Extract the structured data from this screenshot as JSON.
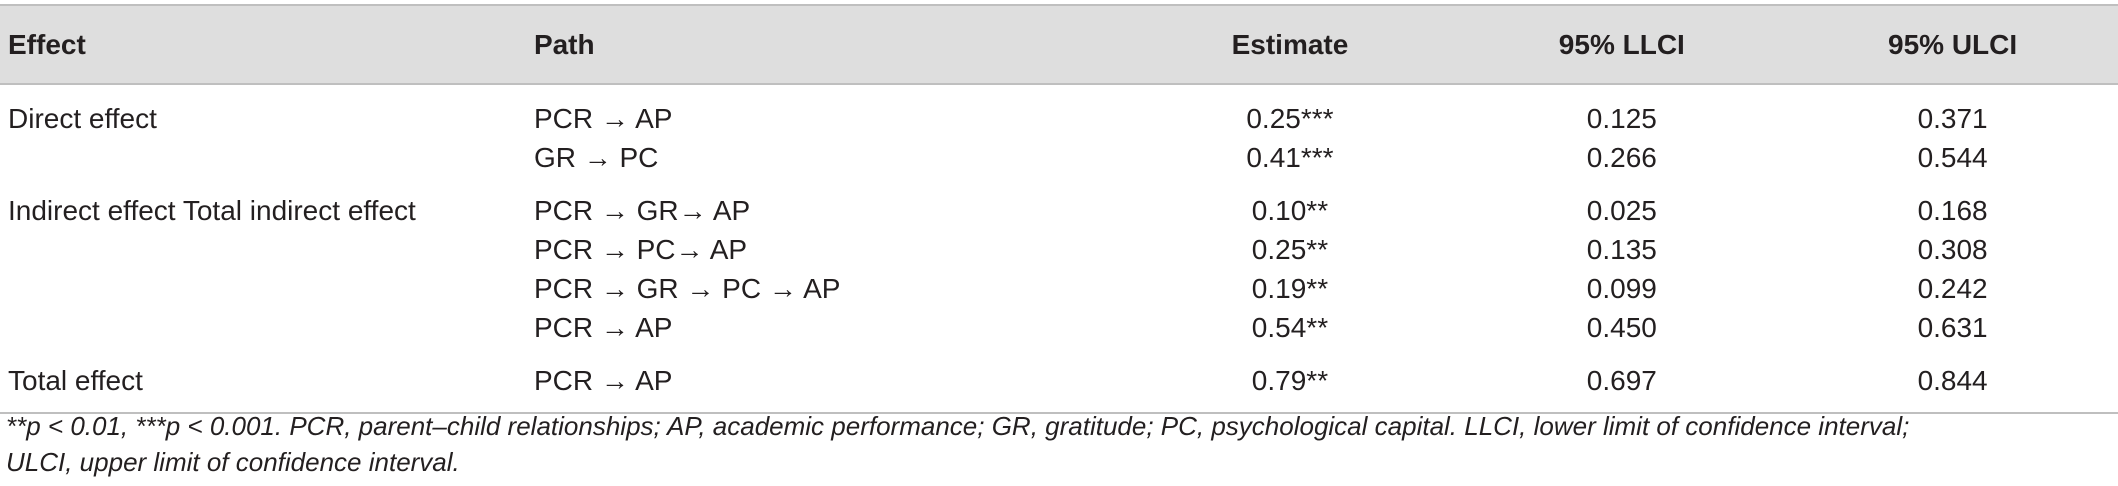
{
  "headers": {
    "effect": "Effect",
    "path": "Path",
    "estimate": "Estimate",
    "llci": "95% LLCI",
    "ulci": "95% ULCI"
  },
  "rows": [
    {
      "effect": "Direct effect",
      "path": "PCR → AP",
      "estimate": "0.25***",
      "llci": "0.125",
      "ulci": "0.371"
    },
    {
      "effect": "",
      "path": "GR → PC",
      "estimate": "0.41***",
      "llci": "0.266",
      "ulci": "0.544"
    },
    {
      "effect": "Indirect effect Total indirect effect",
      "path": "PCR → GR→ AP",
      "estimate": "0.10**",
      "llci": "0.025",
      "ulci": "0.168"
    },
    {
      "effect": "",
      "path": "PCR → PC→ AP",
      "estimate": "0.25**",
      "llci": "0.135",
      "ulci": "0.308"
    },
    {
      "effect": "",
      "path": "PCR → GR → PC → AP",
      "estimate": "0.19**",
      "llci": "0.099",
      "ulci": "0.242"
    },
    {
      "effect": "",
      "path": "PCR → AP",
      "estimate": "0.54**",
      "llci": "0.450",
      "ulci": "0.631"
    },
    {
      "effect": "Total effect",
      "path": "PCR → AP",
      "estimate": "0.79**",
      "llci": "0.697",
      "ulci": "0.844"
    }
  ],
  "footnote": {
    "line1": "**p < 0.01, ***p < 0.001. PCR, parent–child relationships; AP, academic performance; GR, gratitude; PC, psychological capital. LLCI, lower limit of confidence interval;",
    "line2": "ULCI, upper limit of confidence interval."
  }
}
